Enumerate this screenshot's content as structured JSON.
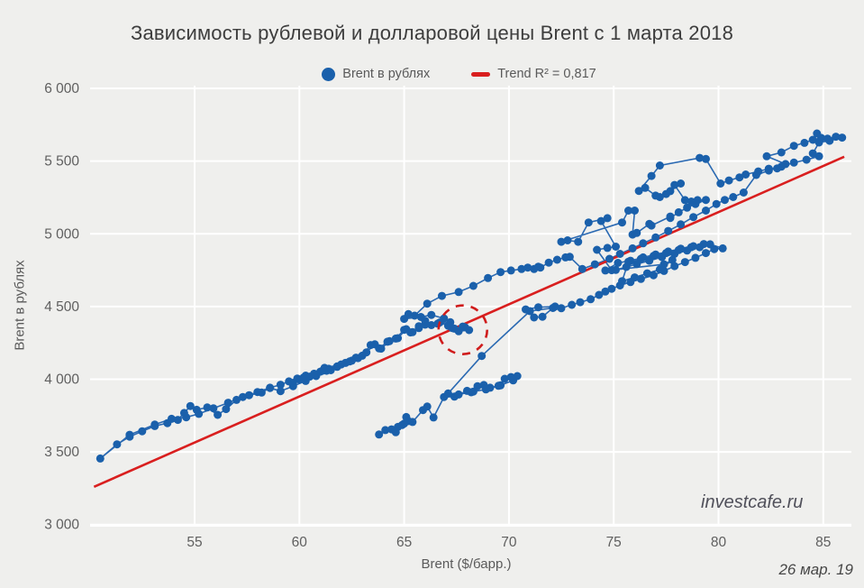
{
  "header": {
    "title": "Зависимость рублевой и долларовой цены Brent с 1 марта 2018"
  },
  "legend": {
    "series_label": "Brent в рублях",
    "trend_label": "Trend R² = 0,817"
  },
  "watermark": "investcafe.ru",
  "date_note": "26 мар. 19",
  "colors": {
    "background": "#efefed",
    "grid": "#ffffff",
    "point": "#1a60ab",
    "line": "#2a69b2",
    "trend": "#d91f1f",
    "annotation": "#cf1c1c",
    "tick_text": "#5f5f5f",
    "title_text": "#3d3d3d"
  },
  "chart_data": {
    "type": "scatter",
    "title": "Зависимость рублевой и долларовой цены Brent с 1 марта 2018",
    "xlabel": "Brent ($/барр.)",
    "ylabel": "Brent в рублях",
    "xlim": [
      50,
      86.2
    ],
    "ylim": [
      3000,
      6000
    ],
    "grid": true,
    "legend_position": "top",
    "x_ticks": [
      {
        "value": 55,
        "label": "55"
      },
      {
        "value": 60,
        "label": "60"
      },
      {
        "value": 65,
        "label": "65"
      },
      {
        "value": 70,
        "label": "70"
      },
      {
        "value": 75,
        "label": "75"
      },
      {
        "value": 80,
        "label": "80"
      },
      {
        "value": 85,
        "label": "85"
      }
    ],
    "y_ticks": [
      {
        "value": 3000,
        "label": "3 000"
      },
      {
        "value": 3500,
        "label": "3 500"
      },
      {
        "value": 4000,
        "label": "4 000"
      },
      {
        "value": 4500,
        "label": "4 500"
      },
      {
        "value": 5000,
        "label": "5 000"
      },
      {
        "value": 5500,
        "label": "5 500"
      },
      {
        "value": 6000,
        "label": "6 000"
      }
    ],
    "trend": {
      "label": "Trend R² = 0,817",
      "r2": "0,817",
      "x1": 50.2,
      "y1": 3260,
      "x2": 86.0,
      "y2": 5530
    },
    "annotation_circle": {
      "x": 67.8,
      "y": 4340,
      "radius_px": 27
    },
    "series": [
      {
        "name": "Brent в рублях",
        "connected": true,
        "points": [
          [
            63.8,
            3620
          ],
          [
            64.1,
            3650
          ],
          [
            64.4,
            3655
          ],
          [
            64.6,
            3635
          ],
          [
            64.9,
            3685
          ],
          [
            64.7,
            3672
          ],
          [
            65.0,
            3695
          ],
          [
            65.2,
            3712
          ],
          [
            65.1,
            3740
          ],
          [
            65.4,
            3706
          ],
          [
            65.9,
            3788
          ],
          [
            66.1,
            3812
          ],
          [
            66.4,
            3737
          ],
          [
            66.9,
            3878
          ],
          [
            67.4,
            3880
          ],
          [
            68.0,
            3920
          ],
          [
            68.2,
            3910
          ],
          [
            68.5,
            3952
          ],
          [
            68.8,
            3960
          ],
          [
            69.1,
            3942
          ],
          [
            69.5,
            3955
          ],
          [
            69.8,
            4003
          ],
          [
            70.1,
            4015
          ],
          [
            70.4,
            4022
          ],
          [
            70.2,
            3992
          ],
          [
            69.6,
            3958
          ],
          [
            68.9,
            3930
          ],
          [
            68.3,
            3915
          ],
          [
            67.6,
            3895
          ],
          [
            67.1,
            3902
          ],
          [
            68.7,
            4160
          ],
          [
            71.0,
            4468
          ],
          [
            72.1,
            4490
          ],
          [
            71.6,
            4430
          ],
          [
            71.2,
            4425
          ],
          [
            70.8,
            4480
          ],
          [
            71.4,
            4495
          ],
          [
            72.2,
            4500
          ],
          [
            72.5,
            4488
          ],
          [
            73.0,
            4512
          ],
          [
            73.4,
            4530
          ],
          [
            73.9,
            4550
          ],
          [
            74.3,
            4580
          ],
          [
            74.6,
            4603
          ],
          [
            74.9,
            4622
          ],
          [
            75.3,
            4645
          ],
          [
            75.8,
            4668
          ],
          [
            76.3,
            4690
          ],
          [
            76.9,
            4715
          ],
          [
            77.4,
            4745
          ],
          [
            77.9,
            4778
          ],
          [
            78.4,
            4806
          ],
          [
            78.9,
            4835
          ],
          [
            79.4,
            4868
          ],
          [
            79.8,
            4895
          ],
          [
            80.2,
            4900
          ],
          [
            79.6,
            4928
          ],
          [
            79.1,
            4908
          ],
          [
            78.5,
            4885
          ],
          [
            77.9,
            4862
          ],
          [
            77.3,
            4840
          ],
          [
            76.7,
            4815
          ],
          [
            76.1,
            4792
          ],
          [
            75.6,
            4772
          ],
          [
            75.1,
            4752
          ],
          [
            74.6,
            4748
          ],
          [
            75.2,
            4800
          ],
          [
            75.8,
            4815
          ],
          [
            76.4,
            4838
          ],
          [
            77.0,
            4858
          ],
          [
            77.6,
            4878
          ],
          [
            78.2,
            4898
          ],
          [
            78.8,
            4915
          ],
          [
            79.3,
            4930
          ],
          [
            78.7,
            4908
          ],
          [
            78.1,
            4888
          ],
          [
            77.5,
            4868
          ],
          [
            76.9,
            4848
          ],
          [
            76.3,
            4828
          ],
          [
            75.7,
            4808
          ],
          [
            75.4,
            4675
          ],
          [
            76.0,
            4700
          ],
          [
            76.6,
            4728
          ],
          [
            77.2,
            4755
          ],
          [
            77.8,
            4820
          ],
          [
            77.4,
            4790
          ],
          [
            74.9,
            4750
          ],
          [
            74.2,
            4890
          ],
          [
            74.7,
            4903
          ],
          [
            75.1,
            4912
          ],
          [
            74.4,
            5088
          ],
          [
            74.7,
            5108
          ],
          [
            73.8,
            5078
          ],
          [
            73.3,
            4945
          ],
          [
            72.8,
            4955
          ],
          [
            72.5,
            4945
          ],
          [
            75.4,
            5078
          ],
          [
            75.7,
            5160
          ],
          [
            76.0,
            5160
          ],
          [
            75.9,
            4995
          ],
          [
            76.1,
            5006
          ],
          [
            76.7,
            5068
          ],
          [
            76.8,
            5057
          ],
          [
            77.7,
            5119
          ],
          [
            77.7,
            5109
          ],
          [
            78.1,
            5148
          ],
          [
            78.5,
            5180
          ],
          [
            78.9,
            5205
          ],
          [
            79.4,
            5233
          ],
          [
            79.0,
            5232
          ],
          [
            78.7,
            5222
          ],
          [
            78.4,
            5232
          ],
          [
            77.9,
            5336
          ],
          [
            78.2,
            5346
          ],
          [
            77.7,
            5294
          ],
          [
            77.5,
            5274
          ],
          [
            77.2,
            5253
          ],
          [
            77.0,
            5263
          ],
          [
            76.5,
            5316
          ],
          [
            76.2,
            5295
          ],
          [
            76.8,
            5398
          ],
          [
            77.2,
            5470
          ],
          [
            79.1,
            5522
          ],
          [
            79.4,
            5515
          ],
          [
            80.1,
            5346
          ],
          [
            80.5,
            5367
          ],
          [
            81.0,
            5388
          ],
          [
            81.3,
            5408
          ],
          [
            81.9,
            5429
          ],
          [
            82.4,
            5448
          ],
          [
            82.8,
            5450
          ],
          [
            83.2,
            5480
          ],
          [
            82.3,
            5533
          ],
          [
            83.0,
            5560
          ],
          [
            83.6,
            5605
          ],
          [
            84.1,
            5626
          ],
          [
            84.5,
            5647
          ],
          [
            84.9,
            5660
          ],
          [
            84.7,
            5690
          ],
          [
            85.2,
            5655
          ],
          [
            85.6,
            5668
          ],
          [
            85.9,
            5662
          ],
          [
            85.3,
            5640
          ],
          [
            84.8,
            5628
          ],
          [
            84.5,
            5553
          ],
          [
            84.8,
            5533
          ],
          [
            84.2,
            5510
          ],
          [
            83.6,
            5490
          ],
          [
            83.0,
            5462
          ],
          [
            82.4,
            5435
          ],
          [
            81.8,
            5405
          ],
          [
            81.2,
            5284
          ],
          [
            80.7,
            5253
          ],
          [
            80.3,
            5233
          ],
          [
            79.9,
            5205
          ],
          [
            79.4,
            5160
          ],
          [
            78.8,
            5115
          ],
          [
            78.2,
            5065
          ],
          [
            77.6,
            5020
          ],
          [
            77.0,
            4975
          ],
          [
            76.4,
            4935
          ],
          [
            75.9,
            4900
          ],
          [
            75.3,
            4862
          ],
          [
            74.8,
            4828
          ],
          [
            74.1,
            4790
          ],
          [
            73.5,
            4758
          ],
          [
            72.9,
            4842
          ],
          [
            72.7,
            4838
          ],
          [
            72.3,
            4822
          ],
          [
            71.9,
            4802
          ],
          [
            71.5,
            4768
          ],
          [
            71.4,
            4774
          ],
          [
            71.2,
            4758
          ],
          [
            70.9,
            4768
          ],
          [
            70.6,
            4758
          ],
          [
            70.1,
            4748
          ],
          [
            69.6,
            4737
          ],
          [
            69.0,
            4696
          ],
          [
            68.3,
            4642
          ],
          [
            67.6,
            4600
          ],
          [
            66.8,
            4573
          ],
          [
            66.1,
            4520
          ],
          [
            65.5,
            4437
          ],
          [
            65.2,
            4448
          ],
          [
            65.0,
            4415
          ],
          [
            65.8,
            4428
          ],
          [
            66.3,
            4442
          ],
          [
            66.9,
            4418
          ],
          [
            67.2,
            4392
          ],
          [
            66.6,
            4382
          ],
          [
            66.0,
            4375
          ],
          [
            65.7,
            4365
          ],
          [
            65.4,
            4324
          ],
          [
            65.1,
            4344
          ],
          [
            64.7,
            4282
          ],
          [
            64.3,
            4262
          ],
          [
            63.9,
            4210
          ],
          [
            63.6,
            4240
          ],
          [
            63.2,
            4185
          ],
          [
            62.7,
            4148
          ],
          [
            62.2,
            4112
          ],
          [
            61.8,
            4085
          ],
          [
            61.3,
            4058
          ],
          [
            60.8,
            4022
          ],
          [
            60.3,
            3988
          ],
          [
            59.7,
            3952
          ],
          [
            59.1,
            3918
          ],
          [
            58.6,
            3940
          ],
          [
            58.2,
            3908
          ],
          [
            57.6,
            3890
          ],
          [
            57.0,
            3858
          ],
          [
            56.5,
            3795
          ],
          [
            56.1,
            3755
          ],
          [
            55.6,
            3806
          ],
          [
            55.1,
            3790
          ],
          [
            54.8,
            3816
          ],
          [
            54.5,
            3768
          ],
          [
            54.2,
            3720
          ],
          [
            53.7,
            3698
          ],
          [
            53.1,
            3678
          ],
          [
            52.5,
            3642
          ],
          [
            51.9,
            3605
          ],
          [
            51.3,
            3552
          ],
          [
            50.5,
            3455
          ],
          [
            51.9,
            3618
          ],
          [
            53.1,
            3688
          ],
          [
            53.9,
            3728
          ],
          [
            54.6,
            3738
          ],
          [
            55.2,
            3762
          ],
          [
            55.9,
            3800
          ],
          [
            56.6,
            3838
          ],
          [
            57.3,
            3878
          ],
          [
            58.0,
            3912
          ],
          [
            58.6,
            3942
          ],
          [
            59.1,
            3962
          ],
          [
            59.5,
            3985
          ],
          [
            59.9,
            4005
          ],
          [
            60.3,
            4025
          ],
          [
            60.0,
            3998
          ],
          [
            59.7,
            3975
          ],
          [
            60.2,
            4012
          ],
          [
            60.7,
            4038
          ],
          [
            61.1,
            4058
          ],
          [
            60.8,
            4032
          ],
          [
            60.5,
            4018
          ],
          [
            61.0,
            4052
          ],
          [
            61.4,
            4072
          ],
          [
            61.8,
            4088
          ],
          [
            61.5,
            4062
          ],
          [
            61.2,
            4078
          ],
          [
            62.0,
            4102
          ],
          [
            62.4,
            4122
          ],
          [
            62.8,
            4145
          ],
          [
            62.5,
            4128
          ],
          [
            63.0,
            4162
          ],
          [
            63.4,
            4235
          ],
          [
            63.8,
            4212
          ],
          [
            64.2,
            4258
          ],
          [
            64.6,
            4280
          ],
          [
            65.0,
            4340
          ],
          [
            65.3,
            4322
          ],
          [
            65.7,
            4352
          ],
          [
            66.0,
            4402
          ],
          [
            66.3,
            4372
          ],
          [
            66.7,
            4390
          ],
          [
            67.1,
            4368
          ],
          [
            67.4,
            4348
          ],
          [
            67.8,
            4362
          ],
          [
            68.1,
            4338
          ],
          [
            67.6,
            4330
          ],
          [
            67.3,
            4352
          ],
          [
            67.9,
            4358
          ]
        ]
      }
    ]
  }
}
